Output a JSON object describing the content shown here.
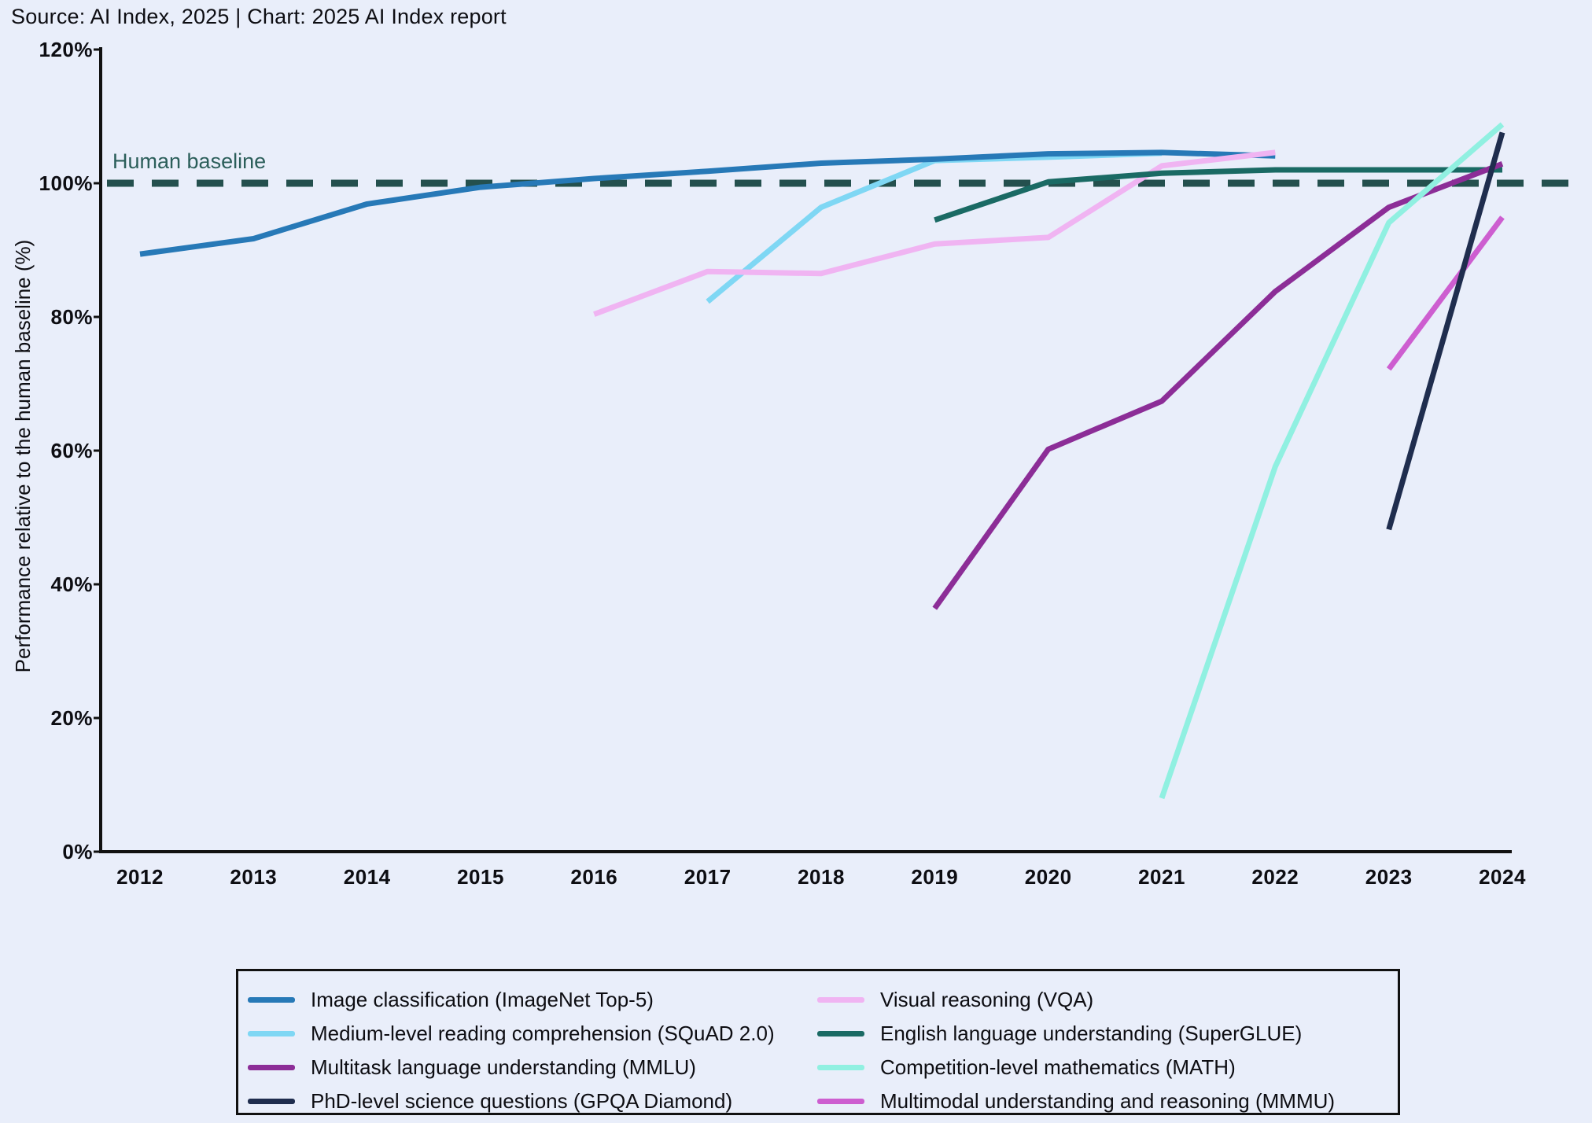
{
  "page": {
    "source_line": "Source: AI Index, 2025 | Chart: 2025 AI Index report"
  },
  "chart_data": {
    "type": "line",
    "title": "Source: AI Index, 2025 | Chart: 2025 AI Index report",
    "xlabel": "",
    "ylabel": "Performance relative to the human baseline (%)",
    "xlim": [
      2012,
      2024
    ],
    "ylim": [
      0,
      120
    ],
    "grid": false,
    "legend_position": "bottom",
    "axis_color": "#111111",
    "yticks": [
      {
        "value": 0,
        "label": "0%"
      },
      {
        "value": 20,
        "label": "20%"
      },
      {
        "value": 40,
        "label": "40%"
      },
      {
        "value": 60,
        "label": "60%"
      },
      {
        "value": 80,
        "label": "80%"
      },
      {
        "value": 100,
        "label": "100%"
      },
      {
        "value": 120,
        "label": "120%"
      }
    ],
    "xticks": [
      {
        "value": 2012,
        "label": "2012"
      },
      {
        "value": 2013,
        "label": "2013"
      },
      {
        "value": 2014,
        "label": "2014"
      },
      {
        "value": 2015,
        "label": "2015"
      },
      {
        "value": 2016,
        "label": "2016"
      },
      {
        "value": 2017,
        "label": "2017"
      },
      {
        "value": 2018,
        "label": "2018"
      },
      {
        "value": 2019,
        "label": "2019"
      },
      {
        "value": 2020,
        "label": "2020"
      },
      {
        "value": 2021,
        "label": "2021"
      },
      {
        "value": 2022,
        "label": "2022"
      },
      {
        "value": 2023,
        "label": "2023"
      },
      {
        "value": 2024,
        "label": "2024"
      }
    ],
    "baseline": {
      "label": "Human baseline",
      "value": 100,
      "color": "#24504e",
      "label_color": "#2b5e5a",
      "style": "dashed"
    },
    "series": [
      {
        "id": "squad",
        "name": "Medium-level reading comprehension (SQuAD 2.0)",
        "color": "#7fd7f4",
        "points": [
          [
            2017,
            82.3
          ],
          [
            2018,
            96.4
          ],
          [
            2019,
            103.4
          ],
          [
            2020,
            103.9
          ],
          [
            2021,
            104.5
          ]
        ]
      },
      {
        "id": "imagenet",
        "name": "Image classification (ImageNet Top-5)",
        "color": "#2779b7",
        "points": [
          [
            2012,
            89.4
          ],
          [
            2013,
            91.7
          ],
          [
            2014,
            96.9
          ],
          [
            2015,
            99.4
          ],
          [
            2016,
            100.7
          ],
          [
            2017,
            101.8
          ],
          [
            2018,
            103.0
          ],
          [
            2019,
            103.6
          ],
          [
            2020,
            104.4
          ],
          [
            2021,
            104.6
          ],
          [
            2022,
            104.1
          ]
        ]
      },
      {
        "id": "vqa",
        "name": "Visual reasoning (VQA)",
        "color": "#f0b4f2",
        "points": [
          [
            2016,
            80.4
          ],
          [
            2017,
            86.8
          ],
          [
            2018,
            86.5
          ],
          [
            2019,
            90.9
          ],
          [
            2020,
            91.9
          ],
          [
            2021,
            102.6
          ],
          [
            2022,
            104.6
          ]
        ]
      },
      {
        "id": "superglue",
        "name": "English language understanding (SuperGLUE)",
        "color": "#1a6a64",
        "points": [
          [
            2019,
            94.5
          ],
          [
            2020,
            100.2
          ],
          [
            2021,
            101.5
          ],
          [
            2022,
            102.0
          ],
          [
            2023,
            102.0
          ],
          [
            2024,
            102.0
          ]
        ]
      },
      {
        "id": "mmlu",
        "name": "Multitask language understanding (MMLU)",
        "color": "#8c2d97",
        "points": [
          [
            2019,
            36.4
          ],
          [
            2020,
            60.2
          ],
          [
            2021,
            67.4
          ],
          [
            2022,
            83.8
          ],
          [
            2023,
            96.4
          ],
          [
            2024,
            102.9
          ]
        ]
      },
      {
        "id": "math",
        "name": "Competition-level mathematics (MATH)",
        "color": "#90f0e1",
        "points": [
          [
            2021,
            8.0
          ],
          [
            2022,
            57.6
          ],
          [
            2023,
            94.1
          ],
          [
            2024,
            108.8
          ]
        ]
      },
      {
        "id": "mmmu",
        "name": "Multimodal understanding and reasoning (MMMU)",
        "color": "#cd5ed0",
        "points": [
          [
            2023,
            72.2
          ],
          [
            2024,
            94.9
          ]
        ]
      },
      {
        "id": "gpqa",
        "name": "PhD-level science questions (GPQA Diamond)",
        "color": "#1f2d4e",
        "points": [
          [
            2023,
            48.2
          ],
          [
            2024,
            107.6
          ]
        ]
      }
    ],
    "legend_columns": [
      [
        1,
        0,
        4,
        7
      ],
      [
        2,
        3,
        5,
        6
      ]
    ]
  }
}
